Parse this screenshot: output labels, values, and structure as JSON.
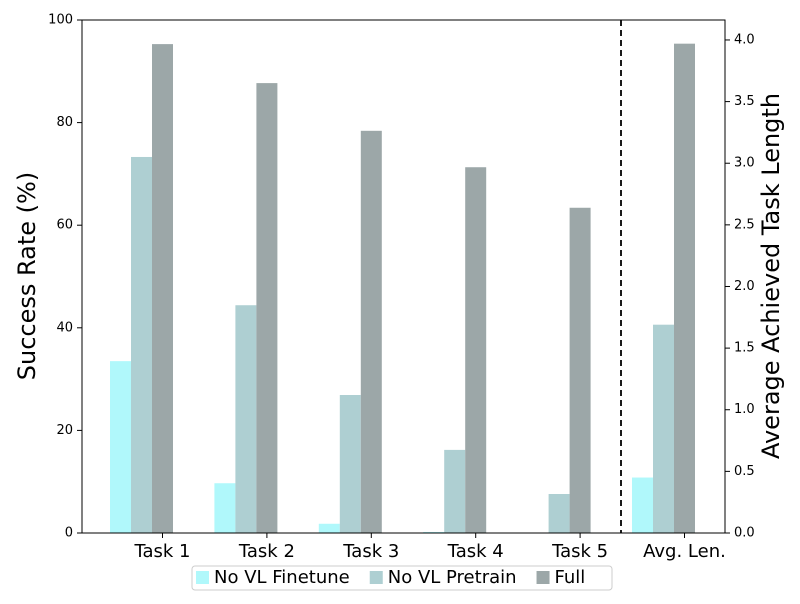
{
  "chart_data": [
    {
      "type": "bar",
      "categories": [
        "Task 1",
        "Task 2",
        "Task 3",
        "Task 4",
        "Task 5"
      ],
      "ylabel": "Success Rate (%)",
      "ylim": [
        0,
        100
      ],
      "yticks": [
        0,
        20,
        40,
        60,
        80,
        100
      ],
      "series": [
        {
          "name": "No VL Finetune",
          "color": "#b0f8fb",
          "values": [
            33.5,
            9.7,
            1.8,
            0.2,
            0
          ]
        },
        {
          "name": "No VL Pretrain",
          "color": "#aecfd2",
          "values": [
            73.3,
            44.4,
            26.9,
            16.2,
            7.6
          ]
        },
        {
          "name": "Full",
          "color": "#9ca7a8",
          "values": [
            95.3,
            87.7,
            78.4,
            71.3,
            63.4
          ]
        }
      ]
    },
    {
      "type": "bar",
      "categories": [
        "Avg. Len."
      ],
      "y2label": "Average Achieved Task Length",
      "y2lim": [
        0,
        4.162
      ],
      "y2ticks": [
        {
          "value": 0,
          "label": "0.0"
        },
        {
          "value": 0.5,
          "label": "0.5"
        },
        {
          "value": 1,
          "label": "1.0"
        },
        {
          "value": 1.5,
          "label": "1.5"
        },
        {
          "value": 2,
          "label": "2.0"
        },
        {
          "value": 2.5,
          "label": "2.5"
        },
        {
          "value": 3,
          "label": "3.0"
        },
        {
          "value": 3.5,
          "label": "3.5"
        },
        {
          "value": 4,
          "label": "4.0"
        }
      ],
      "series": [
        {
          "color": "#b0f8fb",
          "values": [
            0.45
          ],
          "axis": "y2"
        },
        {
          "color": "#aecfd2",
          "values": [
            1.69
          ],
          "axis": "y2"
        },
        {
          "color": "#9ca7a8",
          "values": [
            3.97
          ],
          "axis": "y2"
        }
      ]
    }
  ]
}
